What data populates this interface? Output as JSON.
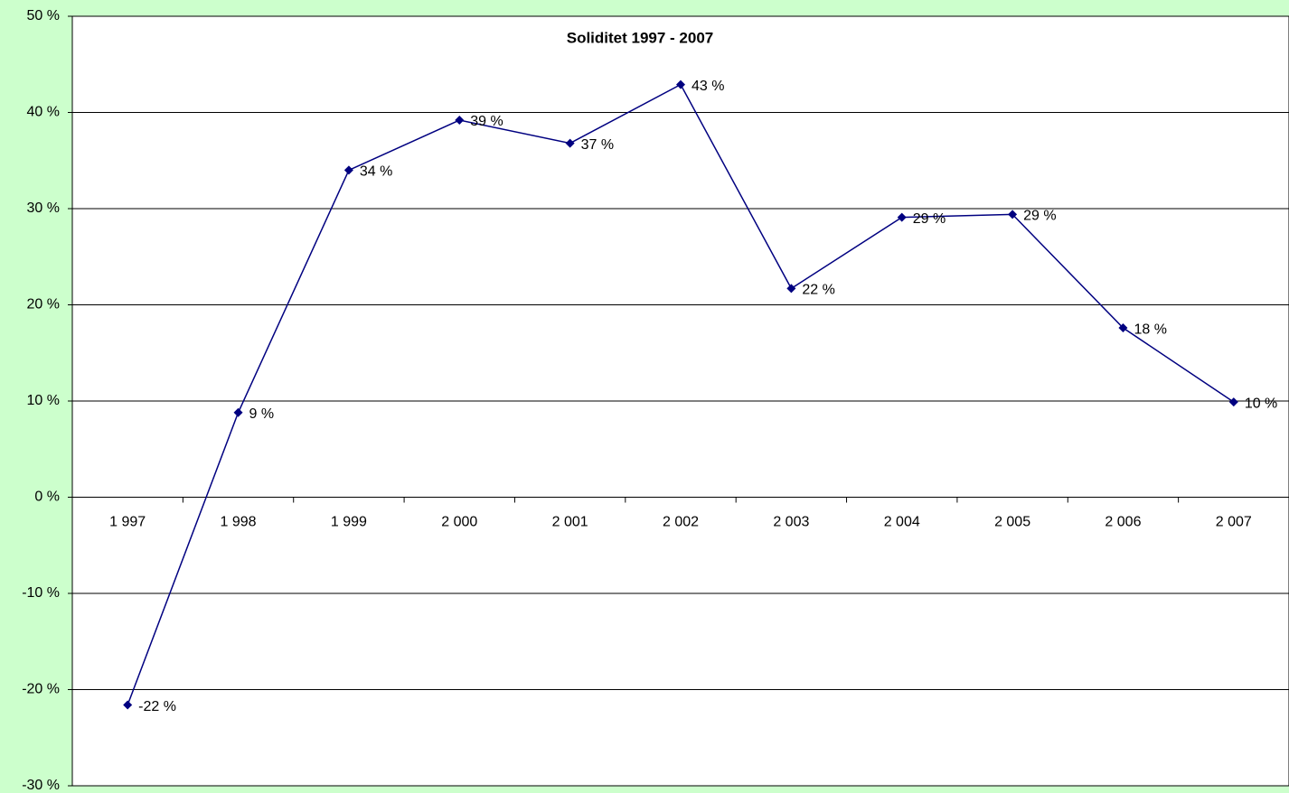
{
  "chart_data": {
    "type": "line",
    "title": "Soliditet 1997 - 2007",
    "categories": [
      "1 997",
      "1 998",
      "1 999",
      "2 000",
      "2 001",
      "2 002",
      "2 003",
      "2 004",
      "2 005",
      "2 006",
      "2 007"
    ],
    "series": [
      {
        "name": "Soliditet",
        "color": "#000080",
        "values": [
          -21.6,
          8.8,
          34.0,
          39.2,
          36.8,
          42.9,
          21.7,
          29.1,
          29.4,
          17.6,
          9.9
        ],
        "value_labels": [
          "-22 %",
          "9 %",
          "34 %",
          "39 %",
          "37 %",
          "43 %",
          "22 %",
          "29 %",
          "29 %",
          "18 %",
          "10 %"
        ]
      }
    ],
    "ylim": [
      -30,
      50
    ],
    "yticks": [
      {
        "value": -30,
        "label": "-30 %"
      },
      {
        "value": -20,
        "label": "-20 %"
      },
      {
        "value": -10,
        "label": "-10 %"
      },
      {
        "value": 0,
        "label": "0 %"
      },
      {
        "value": 10,
        "label": "10 %"
      },
      {
        "value": 20,
        "label": "20 %"
      },
      {
        "value": 30,
        "label": "30 %"
      },
      {
        "value": 40,
        "label": "40 %"
      },
      {
        "value": 50,
        "label": "50 %"
      }
    ],
    "grid": true
  }
}
